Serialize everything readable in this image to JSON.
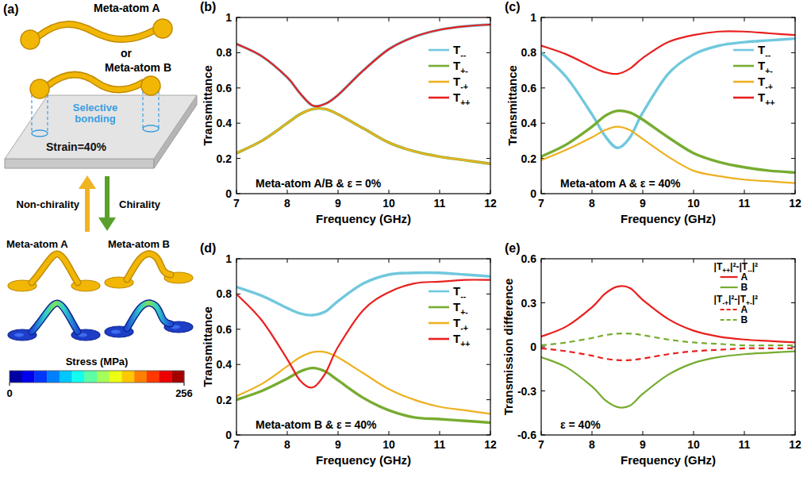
{
  "diagram": {
    "label": "(a)",
    "top_atom": "Meta-atom A",
    "or": "or",
    "bonded_atom": "Meta-atom B",
    "bonding": "Selective bonding",
    "substrate": "Strain=40%",
    "up_arrow": "Non-chirality",
    "down_arrow": "Chirality",
    "deformed": [
      "Meta-atom A",
      "Meta-atom B"
    ],
    "colorbar": {
      "title": "Stress (MPa)",
      "range": [
        0,
        256
      ],
      "ticks": [
        0,
        256
      ]
    }
  },
  "chart_data": [
    {
      "type": "line",
      "label": "(b)",
      "annotation": "Meta-atom A/B & ε = 0%",
      "x_label": "Frequency (GHz)",
      "y_label": "Transmittance",
      "x": [
        7,
        7.5,
        8,
        8.25,
        8.5,
        8.75,
        9,
        9.5,
        10,
        10.5,
        11,
        11.5,
        12
      ],
      "xlim": [
        7,
        12
      ],
      "xticks": [
        7,
        8,
        9,
        10,
        11,
        12
      ],
      "ylim": [
        0,
        1
      ],
      "yticks": [
        0,
        0.2,
        0.4,
        0.6,
        0.8,
        1
      ],
      "grid": false,
      "legend": "upper right",
      "series": [
        {
          "name": "T--",
          "color": "#70c8dd",
          "line_style": "solid",
          "values": [
            0.85,
            0.78,
            0.66,
            0.57,
            0.5,
            0.51,
            0.56,
            0.7,
            0.82,
            0.89,
            0.93,
            0.95,
            0.96
          ]
        },
        {
          "name": "T+-",
          "color": "#77ac30",
          "line_style": "solid",
          "values": [
            0.23,
            0.3,
            0.4,
            0.45,
            0.48,
            0.48,
            0.45,
            0.37,
            0.29,
            0.24,
            0.21,
            0.19,
            0.17
          ]
        },
        {
          "name": "T-+",
          "color": "#edb120",
          "line_style": "solid",
          "values": [
            0.23,
            0.3,
            0.4,
            0.45,
            0.48,
            0.48,
            0.45,
            0.37,
            0.29,
            0.24,
            0.21,
            0.19,
            0.17
          ]
        },
        {
          "name": "T++",
          "color": "#e8201e",
          "line_style": "solid",
          "values": [
            0.85,
            0.78,
            0.66,
            0.57,
            0.5,
            0.51,
            0.56,
            0.7,
            0.82,
            0.89,
            0.93,
            0.95,
            0.96
          ]
        }
      ]
    },
    {
      "type": "line",
      "label": "(c)",
      "annotation": "Meta-atom A & ε = 40%",
      "x_label": "Frequency (GHz)",
      "y_label": "Transmittance",
      "x": [
        7,
        7.5,
        8,
        8.25,
        8.5,
        8.75,
        9,
        9.5,
        10,
        10.5,
        11,
        11.5,
        12
      ],
      "xlim": [
        7,
        12
      ],
      "xticks": [
        7,
        8,
        9,
        10,
        11,
        12
      ],
      "ylim": [
        0,
        1
      ],
      "yticks": [
        0,
        0.2,
        0.4,
        0.6,
        0.8,
        1
      ],
      "grid": false,
      "legend": "upper right",
      "series": [
        {
          "name": "T--",
          "color": "#70c8dd",
          "line_style": "solid",
          "values": [
            0.8,
            0.66,
            0.45,
            0.33,
            0.26,
            0.32,
            0.46,
            0.68,
            0.79,
            0.84,
            0.86,
            0.87,
            0.88
          ]
        },
        {
          "name": "T+-",
          "color": "#77ac30",
          "line_style": "solid",
          "values": [
            0.21,
            0.28,
            0.38,
            0.44,
            0.47,
            0.46,
            0.42,
            0.32,
            0.23,
            0.18,
            0.15,
            0.13,
            0.12
          ]
        },
        {
          "name": "T-+",
          "color": "#edb120",
          "line_style": "solid",
          "values": [
            0.19,
            0.25,
            0.32,
            0.36,
            0.38,
            0.36,
            0.31,
            0.21,
            0.13,
            0.1,
            0.08,
            0.07,
            0.06
          ]
        },
        {
          "name": "T++",
          "color": "#e8201e",
          "line_style": "solid",
          "values": [
            0.84,
            0.79,
            0.72,
            0.69,
            0.68,
            0.71,
            0.77,
            0.86,
            0.9,
            0.92,
            0.92,
            0.91,
            0.9
          ]
        }
      ]
    },
    {
      "type": "line",
      "label": "(d)",
      "annotation": "Meta-atom B & ε = 40%",
      "x_label": "Frequency (GHz)",
      "y_label": "Transmittance",
      "x": [
        7,
        7.5,
        8,
        8.25,
        8.5,
        8.75,
        9,
        9.5,
        10,
        10.5,
        11,
        11.5,
        12
      ],
      "xlim": [
        7,
        12
      ],
      "xticks": [
        7,
        8,
        9,
        10,
        11,
        12
      ],
      "ylim": [
        0,
        1
      ],
      "yticks": [
        0,
        0.2,
        0.4,
        0.6,
        0.8,
        1
      ],
      "grid": false,
      "legend": "upper right",
      "series": [
        {
          "name": "T--",
          "color": "#70c8dd",
          "line_style": "solid",
          "values": [
            0.84,
            0.79,
            0.72,
            0.69,
            0.68,
            0.7,
            0.76,
            0.86,
            0.91,
            0.92,
            0.92,
            0.91,
            0.9
          ]
        },
        {
          "name": "T+-",
          "color": "#77ac30",
          "line_style": "solid",
          "values": [
            0.2,
            0.25,
            0.32,
            0.36,
            0.38,
            0.36,
            0.31,
            0.21,
            0.14,
            0.1,
            0.09,
            0.08,
            0.07
          ]
        },
        {
          "name": "T-+",
          "color": "#edb120",
          "line_style": "solid",
          "values": [
            0.22,
            0.29,
            0.39,
            0.44,
            0.47,
            0.47,
            0.44,
            0.35,
            0.26,
            0.2,
            0.16,
            0.14,
            0.12
          ]
        },
        {
          "name": "T++",
          "color": "#e8201e",
          "line_style": "solid",
          "values": [
            0.8,
            0.65,
            0.43,
            0.31,
            0.27,
            0.35,
            0.5,
            0.71,
            0.81,
            0.86,
            0.87,
            0.88,
            0.88
          ]
        }
      ]
    },
    {
      "type": "line",
      "label": "(e)",
      "annotation": "ε = 40%",
      "x_label": "Frequency (GHz)",
      "y_label": "Transmission difference",
      "x": [
        7,
        7.5,
        8,
        8.25,
        8.5,
        8.75,
        9,
        9.5,
        10,
        10.5,
        11,
        11.5,
        12
      ],
      "xlim": [
        7,
        12
      ],
      "xticks": [
        7,
        8,
        9,
        10,
        11,
        12
      ],
      "ylim": [
        -0.6,
        0.6
      ],
      "yticks": [
        -0.6,
        -0.3,
        0,
        0.3,
        0.6
      ],
      "grid": false,
      "legend": "upper right",
      "legend_titles": [
        "|T++|²-|T--|²",
        "|T-+|²-|T+-|²"
      ],
      "series": [
        {
          "name": "A",
          "color": "#e8201e",
          "line_style": "solid",
          "values": [
            0.07,
            0.14,
            0.27,
            0.36,
            0.41,
            0.4,
            0.32,
            0.19,
            0.11,
            0.07,
            0.05,
            0.04,
            0.03
          ]
        },
        {
          "name": "B",
          "color": "#77ac30",
          "line_style": "solid",
          "values": [
            -0.07,
            -0.14,
            -0.27,
            -0.36,
            -0.41,
            -0.4,
            -0.32,
            -0.19,
            -0.11,
            -0.07,
            -0.05,
            -0.04,
            -0.03
          ]
        },
        {
          "name": "A",
          "color": "#e8201e",
          "line_style": "dashed",
          "values": [
            -0.01,
            -0.03,
            -0.06,
            -0.08,
            -0.09,
            -0.09,
            -0.08,
            -0.05,
            -0.03,
            -0.02,
            -0.01,
            -0.01,
            -0.01
          ]
        },
        {
          "name": "B",
          "color": "#77ac30",
          "line_style": "dashed",
          "values": [
            0.01,
            0.03,
            0.06,
            0.08,
            0.09,
            0.09,
            0.08,
            0.05,
            0.03,
            0.02,
            0.01,
            0.01,
            0.01
          ]
        }
      ]
    }
  ]
}
